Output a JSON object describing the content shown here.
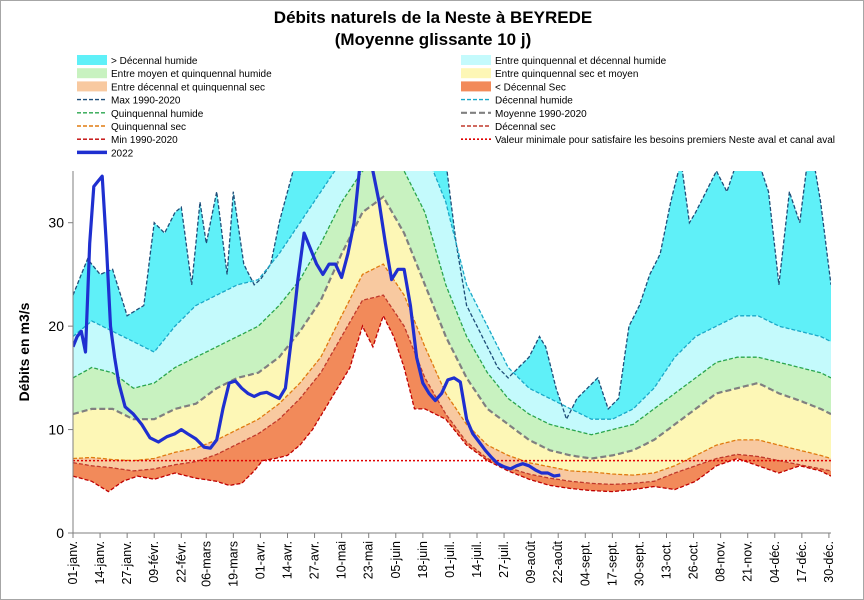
{
  "title_lines": [
    "Débits naturels de la Neste à BEYREDE",
    "(Moyenne glissante 10 j)"
  ],
  "colors": {
    "decennal_humide_zone": "#5ff0f8",
    "quinq_decennal_humide_zone": "#c4fafc",
    "moyen_quinq_humide_zone": "#c8f2c0",
    "quinq_sec_moyen_zone": "#fdf7b6",
    "decennal_quinq_sec_zone": "#f8c9a0",
    "sub_decennal_sec_zone": "#f28a5a",
    "max_line": "#1f4e79",
    "decennal_humide_line": "#1aa8c8",
    "quinq_humide_line": "#2aa64e",
    "moyenne_line": "#808080",
    "quinq_sec_line": "#e07b10",
    "decennal_sec_line": "#c0392b",
    "min_line": "#c00000",
    "year_line": "#1f2fd0",
    "seuil_line": "#e00000"
  },
  "legend": [
    {
      "label": "> Décennal humide",
      "kind": "patch",
      "color_key": "decennal_humide_zone"
    },
    {
      "label": "Entre quinquennal et décennal humide",
      "kind": "patch",
      "color_key": "quinq_decennal_humide_zone"
    },
    {
      "label": "Entre moyen et quinquennal humide",
      "kind": "patch",
      "color_key": "moyen_quinq_humide_zone"
    },
    {
      "label": "Entre quinquennal sec et moyen",
      "kind": "patch",
      "color_key": "quinq_sec_moyen_zone"
    },
    {
      "label": "Entre décennal et quinquennal sec",
      "kind": "patch",
      "color_key": "decennal_quinq_sec_zone"
    },
    {
      "label": "< Décennal Sec",
      "kind": "patch",
      "color_key": "sub_decennal_sec_zone"
    },
    {
      "label": "Max 1990-2020",
      "kind": "dash",
      "color_key": "max_line"
    },
    {
      "label": "Décennal humide",
      "kind": "dash",
      "color_key": "decennal_humide_line"
    },
    {
      "label": "Quinquennal humide",
      "kind": "dash",
      "color_key": "quinq_humide_line"
    },
    {
      "label": "Moyenne 1990-2020",
      "kind": "dash-thick",
      "color_key": "moyenne_line"
    },
    {
      "label": "Quinquennal sec",
      "kind": "dash",
      "color_key": "quinq_sec_line"
    },
    {
      "label": "Décennal sec",
      "kind": "dash",
      "color_key": "decennal_sec_line"
    },
    {
      "label": "Min 1990-2020",
      "kind": "dash",
      "color_key": "min_line"
    },
    {
      "label": "Valeur minimale pour satisfaire les besoins premiers Neste aval et canal aval",
      "kind": "dot",
      "color_key": "seuil_line"
    },
    {
      "label": "2022",
      "kind": "solid",
      "color_key": "year_line"
    }
  ],
  "chart_data": {
    "type": "area",
    "ylabel": "Débits en m3/s",
    "xlabel": "",
    "ylim": [
      0,
      35
    ],
    "yticks": [
      0,
      10,
      20,
      30
    ],
    "grid": false,
    "x_tick_labels": [
      "01-janv.",
      "14-janv.",
      "27-janv.",
      "09-févr.",
      "22-févr.",
      "06-mars",
      "19-mars",
      "01-avr.",
      "14-avr.",
      "27-avr.",
      "10-mai",
      "23-mai",
      "05-juin",
      "18-juin",
      "01-juil.",
      "14-juil.",
      "27-juil.",
      "09-août",
      "22-août",
      "04-sept.",
      "17-sept.",
      "30-sept.",
      "13-oct.",
      "26-oct.",
      "08-nov.",
      "21-nov.",
      "04-déc.",
      "17-déc.",
      "30-déc."
    ],
    "x_tick_days": [
      1,
      14,
      27,
      40,
      53,
      65,
      78,
      91,
      104,
      117,
      130,
      143,
      156,
      169,
      182,
      195,
      208,
      221,
      234,
      247,
      260,
      273,
      286,
      299,
      312,
      325,
      338,
      351,
      364
    ],
    "x_unit": "jour de l'année (1 = 01-janv.)",
    "seuil": 7.0,
    "series": [
      {
        "name": "Max 1990-2020",
        "x": [
          1,
          8,
          14,
          20,
          27,
          35,
          40,
          45,
          50,
          53,
          58,
          62,
          65,
          70,
          75,
          78,
          83,
          88,
          91,
          96,
          100,
          104,
          108,
          112,
          116,
          120,
          125,
          130,
          135,
          140,
          145,
          150,
          155,
          160,
          165,
          170,
          175,
          180,
          185,
          190,
          195,
          200,
          205,
          210,
          215,
          220,
          225,
          228,
          233,
          238,
          243,
          248,
          253,
          258,
          263,
          268,
          273,
          278,
          283,
          288,
          293,
          297,
          300,
          305,
          310,
          315,
          320,
          325,
          330,
          335,
          340,
          345,
          350,
          355,
          360,
          365
        ],
        "values": [
          23,
          26.5,
          25,
          25.5,
          21,
          22,
          30,
          29,
          31,
          31.5,
          24,
          32,
          28,
          33,
          25,
          33,
          26,
          24,
          24.5,
          26,
          30,
          33,
          36,
          38,
          38,
          38,
          38,
          38,
          38,
          38,
          38,
          38,
          38,
          38,
          38,
          38,
          38,
          36,
          28,
          22,
          20,
          18,
          16,
          15,
          16,
          17,
          19,
          18,
          14,
          11,
          13,
          14,
          15,
          12,
          13,
          20,
          22,
          25,
          27,
          32,
          36,
          30,
          31,
          33,
          35,
          33,
          36,
          38,
          36,
          33,
          24,
          33,
          30,
          38,
          32,
          24
        ]
      },
      {
        "name": "Décennal humide",
        "x": [
          1,
          10,
          20,
          30,
          40,
          50,
          60,
          70,
          80,
          90,
          100,
          110,
          120,
          130,
          140,
          150,
          160,
          170,
          180,
          190,
          200,
          210,
          220,
          230,
          240,
          250,
          260,
          270,
          280,
          290,
          300,
          310,
          320,
          330,
          340,
          350,
          360,
          365
        ],
        "values": [
          19,
          20.5,
          19.5,
          18.5,
          17.5,
          20,
          22,
          23,
          24,
          24.5,
          27,
          30,
          33,
          36,
          37,
          37,
          37,
          37,
          32,
          24,
          20,
          16,
          14,
          13,
          12,
          11,
          11,
          12,
          14,
          17,
          19,
          20,
          21,
          21,
          20,
          19.5,
          19,
          18.5
        ]
      },
      {
        "name": "Quinquennal humide",
        "x": [
          1,
          10,
          20,
          30,
          40,
          50,
          60,
          70,
          80,
          90,
          100,
          110,
          120,
          130,
          140,
          150,
          160,
          170,
          180,
          190,
          200,
          210,
          220,
          230,
          240,
          250,
          260,
          270,
          280,
          290,
          300,
          310,
          320,
          330,
          340,
          350,
          360,
          365
        ],
        "values": [
          15,
          16,
          15.5,
          14,
          14.5,
          16,
          17,
          18,
          19,
          20,
          22,
          24.5,
          28,
          32,
          35,
          36,
          35,
          31,
          24,
          19,
          15.5,
          13,
          11.5,
          10.5,
          10,
          9.5,
          10,
          10.5,
          12,
          13.5,
          15,
          16.5,
          17,
          17,
          16.5,
          16,
          15.5,
          15
        ]
      },
      {
        "name": "Moyenne 1990-2020",
        "x": [
          1,
          10,
          20,
          30,
          40,
          50,
          60,
          70,
          80,
          90,
          100,
          110,
          120,
          130,
          140,
          150,
          160,
          170,
          180,
          190,
          200,
          210,
          220,
          230,
          240,
          250,
          260,
          270,
          280,
          290,
          300,
          310,
          320,
          330,
          340,
          350,
          360,
          365
        ],
        "values": [
          11.5,
          12,
          12,
          11,
          11,
          12,
          12.5,
          14,
          15,
          15.5,
          17,
          19.5,
          22.5,
          27,
          31,
          32.5,
          29,
          24,
          19,
          15,
          12,
          10.5,
          9,
          8,
          7.5,
          7.2,
          7.5,
          8,
          9,
          10.5,
          12,
          13.5,
          14,
          14.5,
          13.5,
          12.8,
          12,
          11.5
        ]
      },
      {
        "name": "Quinquennal sec",
        "x": [
          1,
          10,
          20,
          30,
          40,
          50,
          60,
          70,
          80,
          90,
          100,
          110,
          120,
          130,
          140,
          150,
          160,
          170,
          180,
          190,
          200,
          210,
          220,
          230,
          240,
          250,
          260,
          270,
          280,
          290,
          300,
          310,
          320,
          330,
          340,
          350,
          360,
          365
        ],
        "values": [
          7.2,
          7.3,
          7.1,
          7,
          7.2,
          7.8,
          8.2,
          9,
          10,
          11,
          12.5,
          14.5,
          17,
          21,
          25,
          26,
          23,
          18,
          13.5,
          10.5,
          8.5,
          7.5,
          6.8,
          6.4,
          6,
          5.9,
          5.7,
          5.6,
          5.8,
          6.5,
          7.5,
          8.5,
          9,
          9,
          8.5,
          8,
          7.5,
          7.2
        ]
      },
      {
        "name": "Décennal sec",
        "x": [
          1,
          10,
          20,
          30,
          40,
          50,
          60,
          70,
          80,
          90,
          100,
          110,
          120,
          130,
          140,
          150,
          160,
          170,
          180,
          190,
          200,
          210,
          220,
          230,
          240,
          250,
          260,
          270,
          280,
          290,
          300,
          310,
          320,
          330,
          340,
          350,
          360,
          365
        ],
        "values": [
          6.8,
          6.5,
          6.3,
          6,
          6.2,
          6.6,
          6.9,
          7.6,
          8.6,
          9.6,
          11,
          13,
          15.5,
          19,
          22.5,
          23,
          20,
          15,
          11.5,
          8.8,
          7.2,
          6.3,
          5.7,
          5.3,
          5,
          4.8,
          4.7,
          4.8,
          5,
          5.8,
          6.5,
          7.2,
          7.6,
          7.4,
          7,
          6.6,
          6.2,
          6
        ]
      },
      {
        "name": "Min 1990-2020",
        "x": [
          1,
          10,
          18,
          25,
          32,
          40,
          50,
          60,
          70,
          76,
          82,
          88,
          92,
          98,
          104,
          110,
          116,
          122,
          128,
          134,
          140,
          145,
          150,
          155,
          160,
          165,
          170,
          175,
          180,
          190,
          200,
          210,
          220,
          230,
          240,
          250,
          260,
          270,
          280,
          290,
          300,
          310,
          320,
          330,
          340,
          350,
          360,
          365
        ],
        "values": [
          5.5,
          5,
          4,
          5,
          5.5,
          5.2,
          5.8,
          5.3,
          5,
          4.6,
          4.8,
          6,
          7,
          7.2,
          7.5,
          8.5,
          10,
          12,
          14,
          16,
          20,
          18,
          21,
          19,
          16,
          12,
          12,
          11.5,
          11,
          8.5,
          7,
          6,
          5.2,
          4.6,
          4.3,
          4.1,
          4,
          4.2,
          4.5,
          4.2,
          5,
          6.5,
          7.2,
          6.5,
          5.8,
          6.5,
          6,
          5.5
        ]
      },
      {
        "name": "2022",
        "x": [
          1,
          3,
          5,
          7,
          9,
          11,
          13,
          15,
          17,
          19,
          21,
          23,
          26,
          30,
          34,
          38,
          42,
          46,
          50,
          53,
          56,
          60,
          64,
          67,
          70,
          73,
          76,
          79,
          82,
          85,
          88,
          91,
          94,
          97,
          100,
          103,
          106,
          109,
          112,
          115,
          118,
          121,
          124,
          127,
          130,
          133,
          136,
          139,
          142,
          145,
          148,
          151,
          154,
          157,
          160,
          163,
          166,
          169,
          172,
          175,
          178,
          181,
          184,
          187,
          190,
          193,
          196,
          199,
          202,
          205,
          208,
          211,
          214,
          217,
          220,
          223,
          226,
          229,
          232,
          235
        ],
        "values": [
          18,
          19,
          19.5,
          17.5,
          28,
          33.5,
          34,
          34.5,
          28,
          20,
          17,
          14.5,
          12.2,
          11.5,
          10.5,
          9.2,
          8.8,
          9.3,
          9.6,
          10,
          9.6,
          9.1,
          8.3,
          8.2,
          9,
          12,
          14.5,
          14.7,
          14,
          13.5,
          13.2,
          13.5,
          13.6,
          13.3,
          13,
          14,
          19,
          24.5,
          29,
          27.5,
          26,
          25,
          26,
          26,
          24.7,
          27,
          30,
          36,
          37,
          35,
          32,
          28,
          24.5,
          25.5,
          25.5,
          22,
          17,
          14.5,
          13.5,
          12.8,
          13.5,
          14.8,
          15,
          14.6,
          11,
          9.6,
          8.8,
          8,
          7.3,
          6.7,
          6.4,
          6.2,
          6.5,
          6.7,
          6.5,
          6.1,
          5.8,
          5.8,
          5.5,
          5.6
        ]
      }
    ]
  }
}
